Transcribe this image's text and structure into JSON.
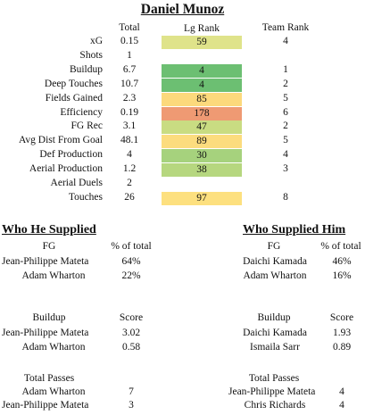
{
  "title": "Daniel Munoz",
  "headers": {
    "total": "Total",
    "lg_rank": "Lg Rank",
    "team_rank": "Team Rank"
  },
  "stats": [
    {
      "label": "xG",
      "total": "0.15",
      "lg_rank": "59",
      "team_rank": "4",
      "color": "#dfe38a"
    },
    {
      "label": "Shots",
      "total": "1",
      "lg_rank": "",
      "team_rank": "",
      "color": ""
    },
    {
      "label": "Buildup",
      "total": "6.7",
      "lg_rank": "4",
      "team_rank": "1",
      "color": "#6cbf72"
    },
    {
      "label": "Deep Touches",
      "total": "10.7",
      "lg_rank": "4",
      "team_rank": "2",
      "color": "#6cbf72"
    },
    {
      "label": "Fields Gained",
      "total": "2.3",
      "lg_rank": "85",
      "team_rank": "5",
      "color": "#fcd97c"
    },
    {
      "label": "Efficiency",
      "total": "0.19",
      "lg_rank": "178",
      "team_rank": "6",
      "color": "#ef9a73"
    },
    {
      "label": "FG Rec",
      "total": "3.1",
      "lg_rank": "47",
      "team_rank": "2",
      "color": "#c9dc82"
    },
    {
      "label": "Avg Dist From Goal",
      "total": "48.1",
      "lg_rank": "89",
      "team_rank": "5",
      "color": "#fcdc7e"
    },
    {
      "label": "Def Production",
      "total": "4",
      "lg_rank": "30",
      "team_rank": "4",
      "color": "#a6d27d"
    },
    {
      "label": "Aerial Production",
      "total": "1.2",
      "lg_rank": "38",
      "team_rank": "3",
      "color": "#b6d77f"
    },
    {
      "label": "Aerial Duels",
      "total": "2",
      "lg_rank": "",
      "team_rank": "",
      "color": ""
    },
    {
      "label": "Touches",
      "total": "26",
      "lg_rank": "97",
      "team_rank": "8",
      "color": "#fde07f"
    }
  ],
  "supplied": {
    "title": "Who He Supplied",
    "fg_header": "FG",
    "pct_header": "% of total",
    "fg": [
      {
        "name": "Jean-Philippe Mateta",
        "value": "64%"
      },
      {
        "name": "Adam Wharton",
        "value": "22%"
      }
    ],
    "buildup_header": "Buildup",
    "score_header": "Score",
    "buildup": [
      {
        "name": "Jean-Philippe Mateta",
        "value": "3.02"
      },
      {
        "name": "Adam Wharton",
        "value": "0.58"
      }
    ],
    "passes_header": "Total Passes",
    "passes": [
      {
        "name": "Adam Wharton",
        "value": "7"
      },
      {
        "name": "Jean-Philippe Mateta",
        "value": "3"
      }
    ]
  },
  "supplied_him": {
    "title": "Who Supplied Him",
    "fg_header": "FG",
    "pct_header": "% of total",
    "fg": [
      {
        "name": "Daichi Kamada",
        "value": "46%"
      },
      {
        "name": "Adam Wharton",
        "value": "16%"
      }
    ],
    "buildup_header": "Buildup",
    "score_header": "Score",
    "buildup": [
      {
        "name": "Daichi Kamada",
        "value": "1.93"
      },
      {
        "name": "Ismaila Sarr",
        "value": "0.89"
      }
    ],
    "passes_header": "Total Passes",
    "passes": [
      {
        "name": "Jean-Philippe Mateta",
        "value": "4"
      },
      {
        "name": "Chris Richards",
        "value": "4"
      }
    ]
  }
}
